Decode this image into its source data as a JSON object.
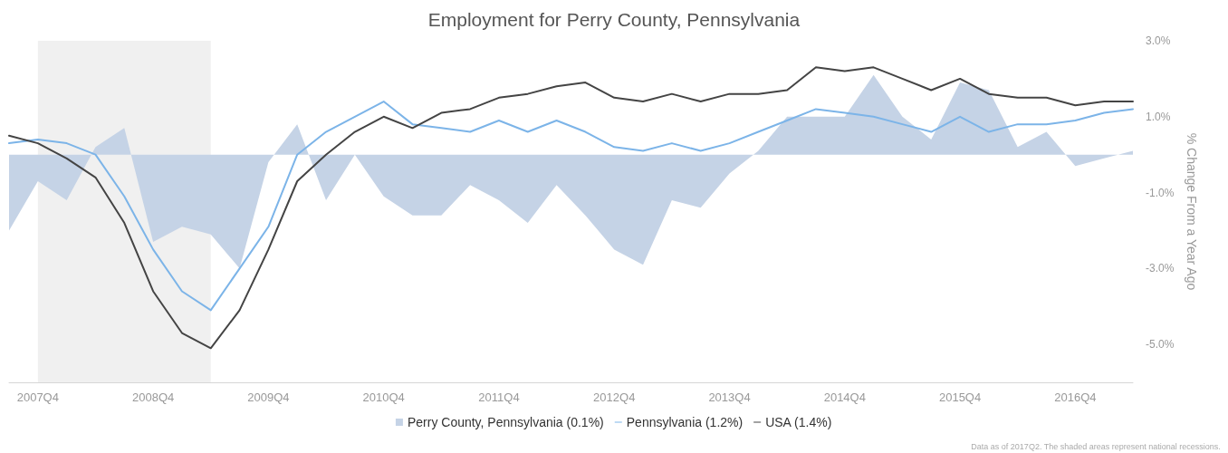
{
  "chart_data": {
    "type": "line",
    "title": "Employment for Perry County, Pennsylvania",
    "ylabel": "% Change From a Year Ago",
    "categories": [
      null,
      "2007Q4",
      null,
      null,
      null,
      "2008Q4",
      null,
      null,
      null,
      "2009Q4",
      null,
      null,
      null,
      "2010Q4",
      null,
      null,
      null,
      "2011Q4",
      null,
      null,
      null,
      "2012Q4",
      null,
      null,
      null,
      "2013Q4",
      null,
      null,
      null,
      "2014Q4",
      null,
      null,
      null,
      "2015Q4",
      null,
      null,
      null,
      "2016Q4",
      null,
      null
    ],
    "ylim": [
      -6,
      3
    ],
    "yticks": [
      {
        "value": -5,
        "label": "-5.0%"
      },
      {
        "value": -3,
        "label": "-3.0%"
      },
      {
        "value": -1,
        "label": "-1.0%"
      },
      {
        "value": 1,
        "label": "1.0%"
      },
      {
        "value": 3,
        "label": "3.0%"
      }
    ],
    "series": [
      {
        "name": "Perry County, Pennsylvania (0.1%)",
        "type": "area",
        "color": "#c5d3e6",
        "values": [
          -2.0,
          -0.7,
          -1.2,
          0.2,
          0.7,
          -2.3,
          -1.9,
          -2.1,
          -3.0,
          -0.2,
          0.8,
          -1.2,
          0.0,
          -1.1,
          -1.6,
          -1.6,
          -0.8,
          -1.2,
          -1.8,
          -0.8,
          -1.6,
          -2.5,
          -2.9,
          -1.2,
          -1.4,
          -0.5,
          0.1,
          1.0,
          1.0,
          1.0,
          2.1,
          1.0,
          0.4,
          1.9,
          1.7,
          0.2,
          0.6,
          -0.3,
          -0.1,
          0.1
        ]
      },
      {
        "name": "Pennsylvania (1.2%)",
        "color": "#7cb4e8",
        "values": [
          0.3,
          0.4,
          0.3,
          0.0,
          -1.1,
          -2.5,
          -3.6,
          -4.1,
          -3.0,
          -1.9,
          0.0,
          0.6,
          1.0,
          1.4,
          0.8,
          0.7,
          0.6,
          0.9,
          0.6,
          0.9,
          0.6,
          0.2,
          0.1,
          0.3,
          0.1,
          0.3,
          0.6,
          0.9,
          1.2,
          1.1,
          1.0,
          0.8,
          0.6,
          1.0,
          0.6,
          0.8,
          0.8,
          0.9,
          1.1,
          1.2
        ]
      },
      {
        "name": "USA (1.4%)",
        "color": "#444444",
        "values": [
          0.5,
          0.3,
          -0.1,
          -0.6,
          -1.8,
          -3.6,
          -4.7,
          -5.1,
          -4.1,
          -2.5,
          -0.7,
          0.0,
          0.6,
          1.0,
          0.7,
          1.1,
          1.2,
          1.5,
          1.6,
          1.8,
          1.9,
          1.5,
          1.4,
          1.6,
          1.4,
          1.6,
          1.6,
          1.7,
          2.3,
          2.2,
          2.3,
          2.0,
          1.7,
          2.0,
          1.6,
          1.5,
          1.5,
          1.3,
          1.4,
          1.4
        ]
      }
    ],
    "annotations": [
      "Data as of 2017Q2. The shaded areas represent national recessions."
    ],
    "legend": "bottom",
    "grid": false,
    "marker": "none",
    "line_style": "solid"
  }
}
